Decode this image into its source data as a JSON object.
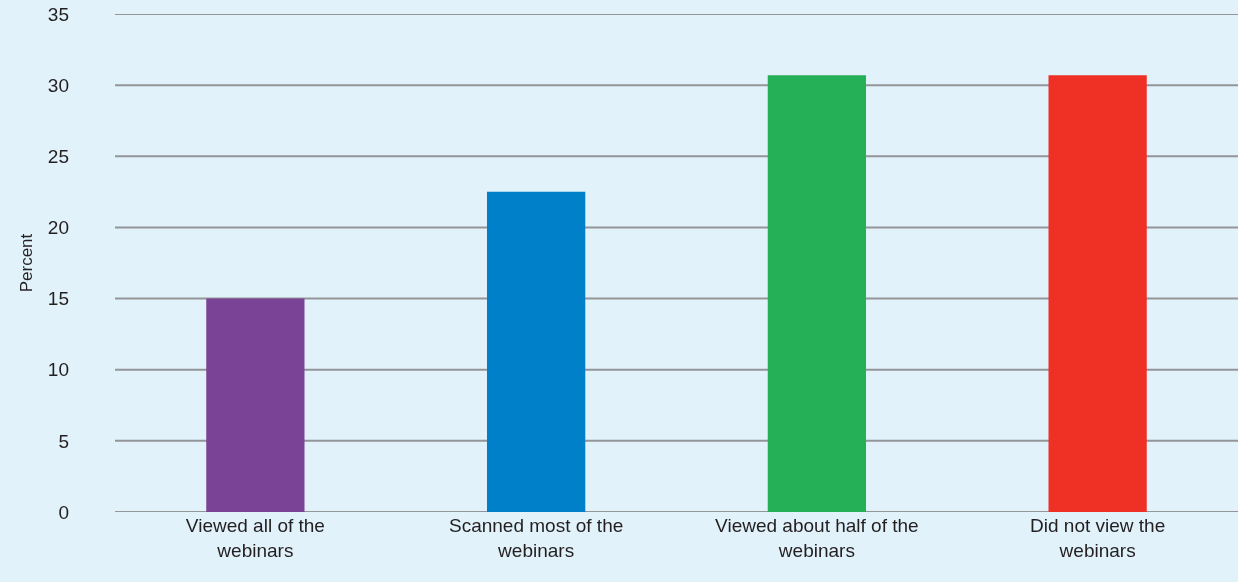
{
  "chart_data": {
    "type": "bar",
    "ylabel": "Percent",
    "categories": [
      "Viewed all of the webinars",
      "Scanned most of the webinars",
      "Viewed about half of the webinars",
      "Did not view the webinars"
    ],
    "values": [
      15,
      22.5,
      30.7,
      30.7
    ],
    "colors": [
      "#7b4396",
      "#0080c8",
      "#25b058",
      "#ee3124"
    ],
    "ylim": [
      0,
      35
    ],
    "yticks": [
      0,
      5,
      10,
      15,
      20,
      25,
      30,
      35
    ],
    "grid": "y"
  }
}
